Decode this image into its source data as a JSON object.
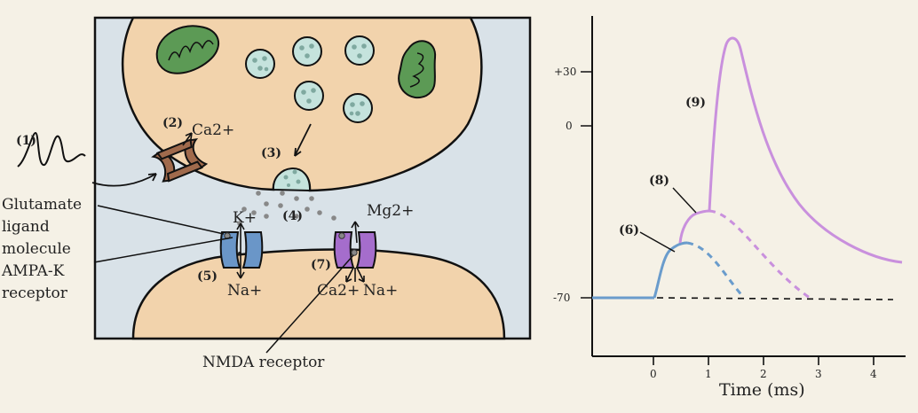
{
  "labels": {
    "n1": "(1)",
    "n2": "(2)",
    "n3": "(3)",
    "n4": "(4)",
    "n5": "(5)",
    "n6": "(6)",
    "n7": "(7)",
    "n8": "(8)",
    "n9": "(9)",
    "ca_in": "Ca2+",
    "k_plus": "K+",
    "mg": "Mg2+",
    "na_ampa": "Na+",
    "ca_nmda": "Ca2+",
    "na_nmda": "Na+",
    "glutamate_1": "Glutamate",
    "glutamate_2": "ligand",
    "glutamate_3": "molecule",
    "ampa_1": "AMPA-K",
    "ampa_2": "receptor",
    "nmda": "NMDA receptor"
  },
  "graph": {
    "y_ticks": [
      "+30",
      "0",
      "-70"
    ],
    "x_ticks": [
      "0",
      "1",
      "2",
      "3",
      "4"
    ],
    "xlabel": "Time (ms)"
  },
  "colors": {
    "background": "#f5f1e6",
    "cleft": "#d9e2e8",
    "neuron": "#f2d3ac",
    "ampa_receptor": "#6a96c8",
    "nmda_receptor": "#a56dcc",
    "ca_channel": "#a06a4c",
    "mitochondria": "#5c9a55",
    "vesicle": "#c5e3dd",
    "epsp_blue": "#6a9ccc",
    "epsp_purple": "#c990dd"
  }
}
